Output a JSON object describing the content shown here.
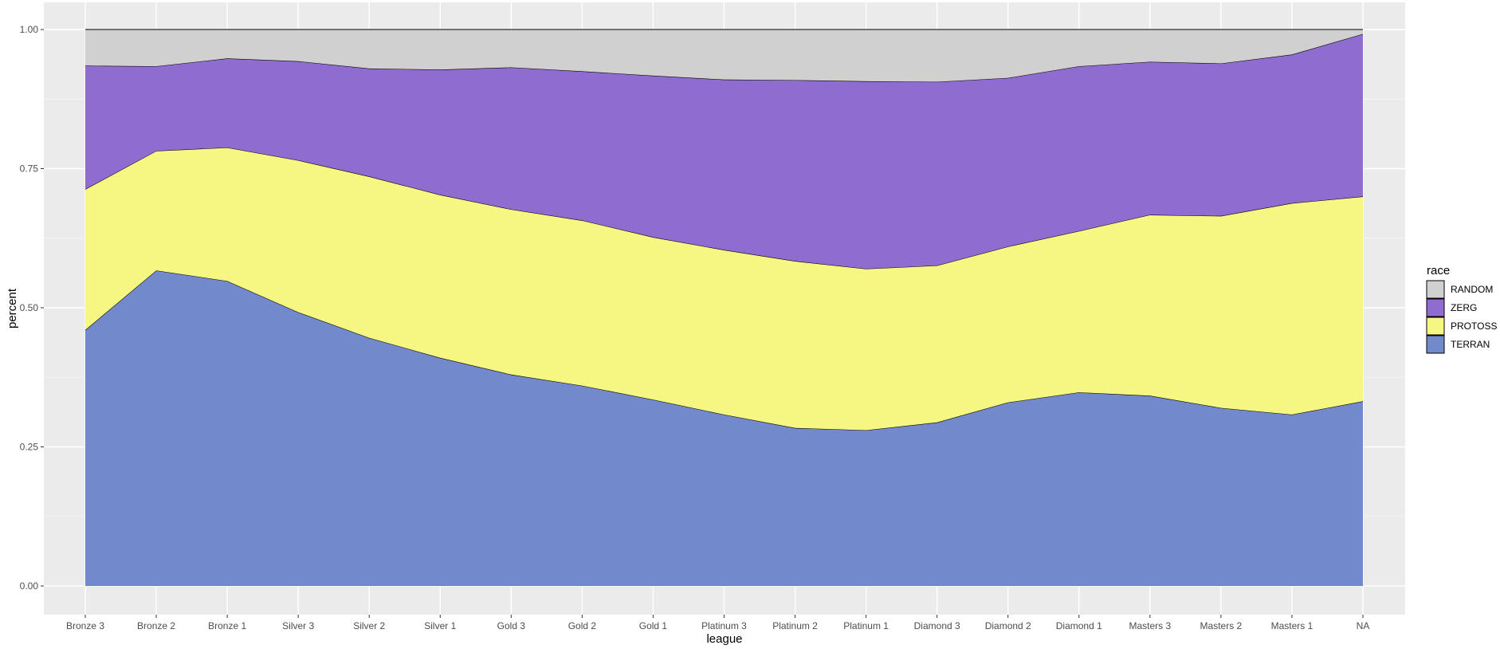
{
  "chart_data": {
    "type": "area",
    "stacked": true,
    "normalized": true,
    "xlabel": "league",
    "ylabel": "percent",
    "ylim": [
      0,
      1
    ],
    "yticks": [
      "0.00",
      "0.25",
      "0.50",
      "0.75",
      "1.00"
    ],
    "ytick_values": [
      0,
      0.25,
      0.5,
      0.75,
      1.0
    ],
    "grid": true,
    "legend_position": "right",
    "legend_title": "race",
    "categories": [
      "Bronze 3",
      "Bronze 2",
      "Bronze 1",
      "Silver 3",
      "Silver 2",
      "Silver 1",
      "Gold 3",
      "Gold 2",
      "Gold 1",
      "Platinum 3",
      "Platinum 2",
      "Platinum 1",
      "Diamond 3",
      "Diamond 2",
      "Diamond 1",
      "Masters 3",
      "Masters 2",
      "Masters 1",
      "NA"
    ],
    "series": [
      {
        "name": "TERRAN",
        "color": "#7289cc",
        "values": [
          0.46,
          0.567,
          0.548,
          0.492,
          0.446,
          0.41,
          0.38,
          0.36,
          0.335,
          0.308,
          0.284,
          0.28,
          0.294,
          0.33,
          0.348,
          0.342,
          0.32,
          0.308,
          0.332
        ]
      },
      {
        "name": "PROTOSS",
        "color": "#f6f682",
        "values": [
          0.253,
          0.215,
          0.24,
          0.273,
          0.29,
          0.293,
          0.297,
          0.297,
          0.292,
          0.296,
          0.3,
          0.29,
          0.282,
          0.28,
          0.29,
          0.325,
          0.345,
          0.38,
          0.368
        ]
      },
      {
        "name": "ZERG",
        "color": "#8f6ccf",
        "values": [
          0.222,
          0.152,
          0.16,
          0.178,
          0.194,
          0.225,
          0.255,
          0.268,
          0.29,
          0.306,
          0.325,
          0.337,
          0.33,
          0.303,
          0.296,
          0.275,
          0.274,
          0.267,
          0.292
        ]
      },
      {
        "name": "RANDOM",
        "color": "#d0d0d0",
        "values": [
          0.065,
          0.066,
          0.052,
          0.057,
          0.07,
          0.072,
          0.068,
          0.075,
          0.083,
          0.09,
          0.091,
          0.093,
          0.094,
          0.087,
          0.066,
          0.058,
          0.061,
          0.045,
          0.008
        ]
      }
    ],
    "legend_order": [
      "RANDOM",
      "ZERG",
      "PROTOSS",
      "TERRAN"
    ]
  }
}
